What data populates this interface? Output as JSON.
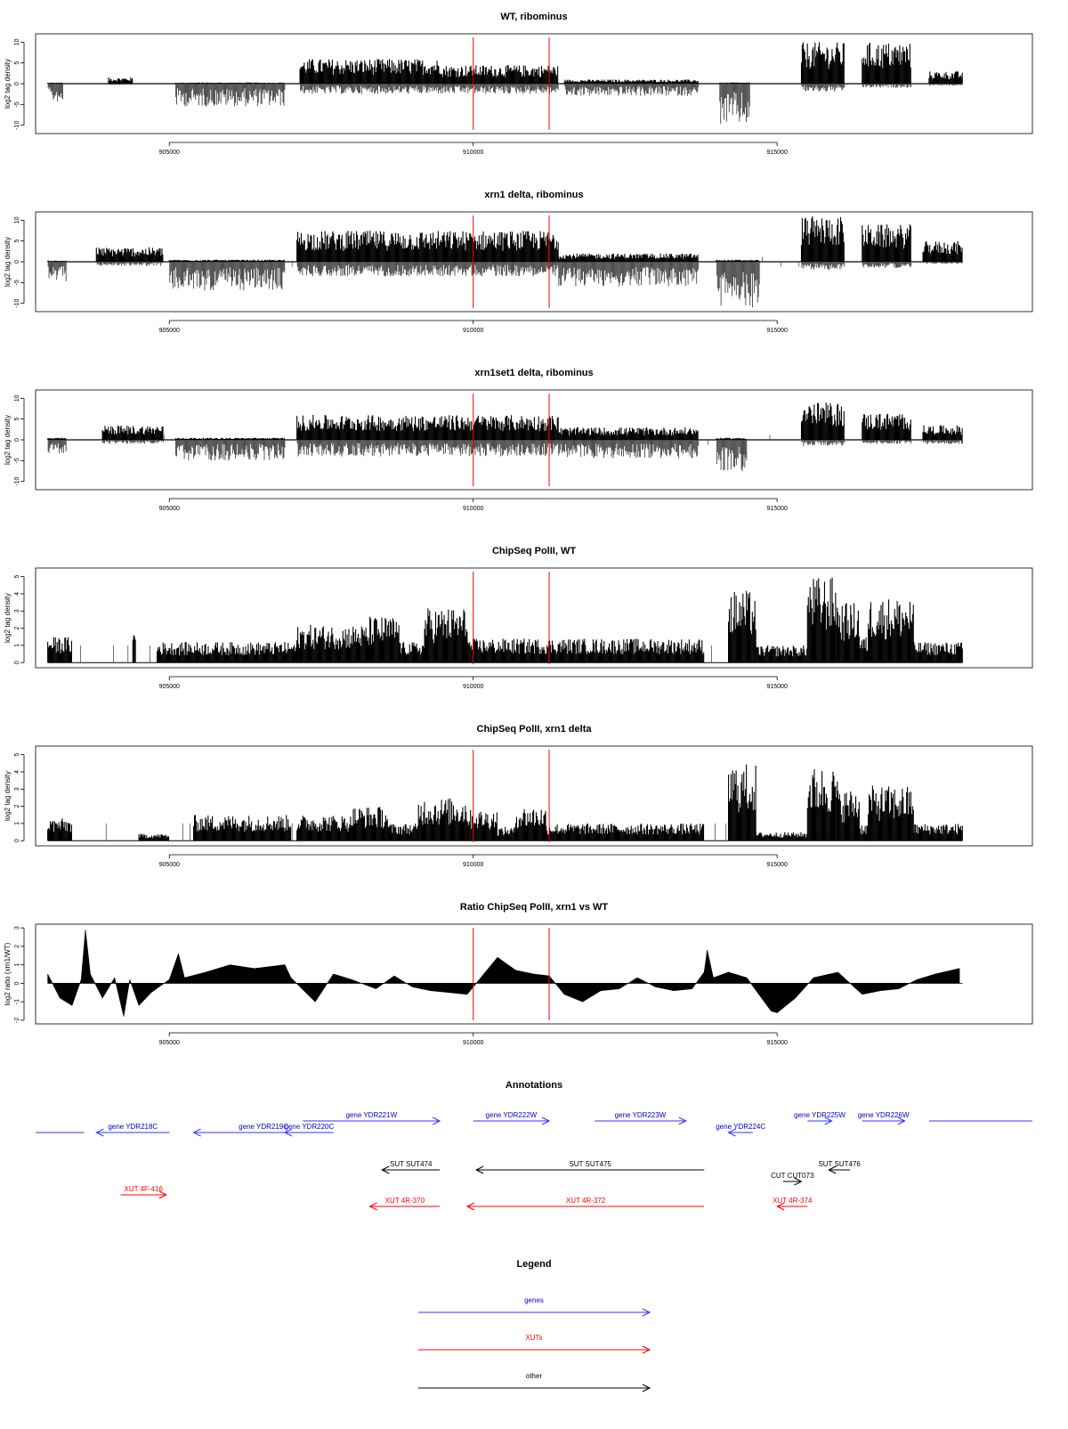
{
  "chart_data": [
    {
      "type": "bar",
      "title": "WT, ribominus",
      "ylabel": "log2 tag density",
      "xlim": [
        902800,
        919200
      ],
      "ylim": [
        -12,
        12
      ],
      "yticks": [
        -10,
        -5,
        0,
        5,
        10
      ],
      "xticks": [
        905000,
        910000,
        915000
      ],
      "xtick_labels": [
        "905000",
        "910000",
        "915000"
      ],
      "markers": [
        910000,
        911250
      ],
      "marker_color": "#ff0000",
      "signal_segments": [
        {
          "start": 903000,
          "end": 903250,
          "pos": 0.3,
          "neg": 4.5
        },
        {
          "start": 904000,
          "end": 904400,
          "pos": 1.5,
          "neg": 0.3
        },
        {
          "start": 905100,
          "end": 906900,
          "pos": 0.3,
          "neg": 5.5
        },
        {
          "start": 907150,
          "end": 909500,
          "pos": 6,
          "neg": 2.5
        },
        {
          "start": 909500,
          "end": 911400,
          "pos": 4.5,
          "neg": 2.5
        },
        {
          "start": 911500,
          "end": 913700,
          "pos": 1,
          "neg": 3
        },
        {
          "start": 914050,
          "end": 914550,
          "pos": 0.3,
          "neg": 10
        },
        {
          "start": 915400,
          "end": 916100,
          "pos": 10,
          "neg": 2
        },
        {
          "start": 916400,
          "end": 917200,
          "pos": 10,
          "neg": 1
        },
        {
          "start": 917500,
          "end": 918050,
          "pos": 3,
          "neg": 0.5
        }
      ]
    },
    {
      "type": "bar",
      "title": "xrn1 delta, ribominus",
      "ylabel": "log2 tag density",
      "xlim": [
        902800,
        919200
      ],
      "ylim": [
        -12,
        12
      ],
      "yticks": [
        -10,
        -5,
        0,
        5,
        10
      ],
      "xticks": [
        905000,
        910000,
        915000
      ],
      "xtick_labels": [
        "905000",
        "910000",
        "915000"
      ],
      "markers": [
        910000,
        911250
      ],
      "marker_color": "#ff0000",
      "signal_segments": [
        {
          "start": 903000,
          "end": 903300,
          "pos": 0.3,
          "neg": 5
        },
        {
          "start": 903800,
          "end": 904900,
          "pos": 3.5,
          "neg": 1
        },
        {
          "start": 905000,
          "end": 906900,
          "pos": 0.5,
          "neg": 7
        },
        {
          "start": 907100,
          "end": 911400,
          "pos": 7.5,
          "neg": 3.5
        },
        {
          "start": 911400,
          "end": 913700,
          "pos": 2,
          "neg": 6
        },
        {
          "start": 914000,
          "end": 914700,
          "pos": 0.5,
          "neg": 11
        },
        {
          "start": 915400,
          "end": 916100,
          "pos": 11,
          "neg": 2
        },
        {
          "start": 916400,
          "end": 917200,
          "pos": 9,
          "neg": 1.5
        },
        {
          "start": 917400,
          "end": 918050,
          "pos": 5,
          "neg": 0.5
        }
      ]
    },
    {
      "type": "bar",
      "title": "xrn1set1 delta, ribominus",
      "ylabel": "log2 tag density",
      "xlim": [
        902800,
        919200
      ],
      "ylim": [
        -12,
        12
      ],
      "yticks": [
        -10,
        -5,
        0,
        5,
        10
      ],
      "xticks": [
        905000,
        910000,
        915000
      ],
      "xtick_labels": [
        "905000",
        "910000",
        "915000"
      ],
      "markers": [
        910000,
        911250
      ],
      "marker_color": "#ff0000",
      "signal_segments": [
        {
          "start": 903000,
          "end": 903300,
          "pos": 0.5,
          "neg": 3.5
        },
        {
          "start": 903900,
          "end": 904900,
          "pos": 3.5,
          "neg": 1
        },
        {
          "start": 905100,
          "end": 906900,
          "pos": 0.5,
          "neg": 5
        },
        {
          "start": 907100,
          "end": 911400,
          "pos": 6,
          "neg": 4
        },
        {
          "start": 911400,
          "end": 913700,
          "pos": 3,
          "neg": 4.5
        },
        {
          "start": 914000,
          "end": 914500,
          "pos": 0.5,
          "neg": 8
        },
        {
          "start": 915400,
          "end": 916100,
          "pos": 9,
          "neg": 1.5
        },
        {
          "start": 916400,
          "end": 917200,
          "pos": 6.5,
          "neg": 1
        },
        {
          "start": 917400,
          "end": 918050,
          "pos": 3.5,
          "neg": 1
        }
      ]
    },
    {
      "type": "bar",
      "title": "ChipSeq PolII, WT",
      "ylabel": "log2 tag density",
      "xlim": [
        902800,
        919200
      ],
      "ylim": [
        -0.3,
        5.5
      ],
      "yticks": [
        0,
        1,
        2,
        3,
        4,
        5
      ],
      "xticks": [
        905000,
        910000,
        915000
      ],
      "xtick_labels": [
        "905000",
        "910000",
        "915000"
      ],
      "markers": [
        910000,
        911250
      ],
      "marker_color": "#ff0000",
      "signal_segments": [
        {
          "start": 903000,
          "end": 903400,
          "pos": 1.5,
          "neg": 0
        },
        {
          "start": 904400,
          "end": 904450,
          "pos": 2,
          "neg": 0
        },
        {
          "start": 904800,
          "end": 907100,
          "pos": 1.2,
          "neg": 0
        },
        {
          "start": 907100,
          "end": 908300,
          "pos": 2.2,
          "neg": 0
        },
        {
          "start": 908300,
          "end": 908800,
          "pos": 2.7,
          "neg": 0
        },
        {
          "start": 908800,
          "end": 909200,
          "pos": 1.2,
          "neg": 0
        },
        {
          "start": 909200,
          "end": 909900,
          "pos": 3.2,
          "neg": 0
        },
        {
          "start": 909900,
          "end": 913800,
          "pos": 1.4,
          "neg": 0
        },
        {
          "start": 914200,
          "end": 914650,
          "pos": 4.2,
          "neg": 0
        },
        {
          "start": 914650,
          "end": 915500,
          "pos": 1,
          "neg": 0
        },
        {
          "start": 915500,
          "end": 916000,
          "pos": 5,
          "neg": 0
        },
        {
          "start": 916000,
          "end": 916350,
          "pos": 3.5,
          "neg": 0
        },
        {
          "start": 916350,
          "end": 916500,
          "pos": 1.5,
          "neg": 0
        },
        {
          "start": 916500,
          "end": 917250,
          "pos": 3.8,
          "neg": 0
        },
        {
          "start": 917250,
          "end": 918050,
          "pos": 1.2,
          "neg": 0
        }
      ]
    },
    {
      "type": "bar",
      "title": "ChipSeq PolII, xrn1 delta",
      "ylabel": "log2 tag density",
      "xlim": [
        902800,
        919200
      ],
      "ylim": [
        -0.3,
        5.5
      ],
      "yticks": [
        0,
        1,
        2,
        3,
        4,
        5
      ],
      "xticks": [
        905000,
        910000,
        915000
      ],
      "xtick_labels": [
        "905000",
        "910000",
        "915000"
      ],
      "markers": [
        910000,
        911250
      ],
      "marker_color": "#ff0000",
      "signal_segments": [
        {
          "start": 903000,
          "end": 903400,
          "pos": 1.3,
          "neg": 0
        },
        {
          "start": 904500,
          "end": 905000,
          "pos": 0.4,
          "neg": 0
        },
        {
          "start": 905400,
          "end": 907000,
          "pos": 1.5,
          "neg": 0
        },
        {
          "start": 907100,
          "end": 908000,
          "pos": 1.5,
          "neg": 0
        },
        {
          "start": 908000,
          "end": 908600,
          "pos": 2,
          "neg": 0
        },
        {
          "start": 908600,
          "end": 909100,
          "pos": 1,
          "neg": 0
        },
        {
          "start": 909100,
          "end": 909900,
          "pos": 2.5,
          "neg": 0
        },
        {
          "start": 909900,
          "end": 910400,
          "pos": 1.8,
          "neg": 0
        },
        {
          "start": 910400,
          "end": 910700,
          "pos": 0.8,
          "neg": 0
        },
        {
          "start": 910700,
          "end": 911200,
          "pos": 2,
          "neg": 0
        },
        {
          "start": 911200,
          "end": 913800,
          "pos": 1,
          "neg": 0
        },
        {
          "start": 914200,
          "end": 914650,
          "pos": 4.5,
          "neg": 0
        },
        {
          "start": 914650,
          "end": 915500,
          "pos": 0.5,
          "neg": 0
        },
        {
          "start": 915500,
          "end": 916000,
          "pos": 4.3,
          "neg": 0
        },
        {
          "start": 916000,
          "end": 916350,
          "pos": 3,
          "neg": 0
        },
        {
          "start": 916350,
          "end": 916500,
          "pos": 1,
          "neg": 0
        },
        {
          "start": 916500,
          "end": 917250,
          "pos": 3.2,
          "neg": 0
        },
        {
          "start": 917250,
          "end": 918050,
          "pos": 1,
          "neg": 0
        }
      ]
    },
    {
      "type": "area",
      "title": "Ratio ChipSeq PolII, xrn1 vs WT",
      "ylabel": "log2 ratio (xrn1/WT)",
      "xlim": [
        902800,
        919200
      ],
      "ylim": [
        -2.2,
        3.2
      ],
      "yticks": [
        -2,
        -1,
        0,
        1,
        2,
        3
      ],
      "xticks": [
        905000,
        910000,
        915000
      ],
      "xtick_labels": [
        "905000",
        "910000",
        "915000"
      ],
      "markers": [
        910000,
        911250
      ],
      "marker_color": "#ff0000",
      "x": [
        903000,
        903200,
        903400,
        903550,
        903620,
        903700,
        903900,
        904100,
        904250,
        904350,
        904500,
        904700,
        905000,
        905150,
        905250,
        905600,
        906000,
        906400,
        906900,
        907000,
        907400,
        907700,
        908000,
        908400,
        908700,
        909000,
        909300,
        909600,
        909900,
        910100,
        910400,
        910700,
        911000,
        911250,
        911500,
        911800,
        912100,
        912400,
        912700,
        913000,
        913300,
        913600,
        913800,
        913850,
        913950,
        914200,
        914500,
        914700,
        914900,
        915000,
        915300,
        915600,
        916000,
        916400,
        916700,
        917000,
        917300,
        917600,
        918000
      ],
      "values": [
        0.5,
        -0.8,
        -1.2,
        0.2,
        2.9,
        0.5,
        -0.8,
        0.3,
        -1.8,
        0.2,
        -1.2,
        -0.5,
        0.2,
        1.6,
        0.3,
        0.6,
        1.0,
        0.8,
        1.0,
        0.3,
        -1.0,
        0.5,
        0.2,
        -0.3,
        0.4,
        -0.2,
        -0.4,
        -0.5,
        -0.6,
        0.2,
        1.4,
        0.7,
        0.5,
        0.4,
        -0.6,
        -1.0,
        -0.4,
        -0.3,
        0.3,
        -0.2,
        -0.4,
        -0.3,
        0.6,
        1.8,
        0.3,
        0.6,
        0.3,
        -0.6,
        -1.5,
        -1.6,
        -0.8,
        0.3,
        0.6,
        -0.6,
        -0.4,
        -0.3,
        0.2,
        0.5,
        0.8
      ]
    }
  ],
  "annotations": {
    "title": "Annotations",
    "tracks": [
      {
        "class": "gene",
        "label": "",
        "dir": "none",
        "start": 902800,
        "end": 903600,
        "row": 1
      },
      {
        "class": "gene",
        "label": "gene YDR218C",
        "dir": "left",
        "start": 903800,
        "end": 905000,
        "row": 1
      },
      {
        "class": "gene",
        "label": "gene YDR219C",
        "dir": "left",
        "start": 905400,
        "end": 907700,
        "row": 1
      },
      {
        "class": "gene",
        "label": "gene YDR220C",
        "dir": "left",
        "start": 906900,
        "end": 907700,
        "row": 1
      },
      {
        "class": "gene",
        "label": "gene YDR221W",
        "dir": "right",
        "start": 907200,
        "end": 909450,
        "row": 0
      },
      {
        "class": "gene",
        "label": "gene YDR222W",
        "dir": "right",
        "start": 910000,
        "end": 911250,
        "row": 0
      },
      {
        "class": "gene",
        "label": "gene YDR223W",
        "dir": "right",
        "start": 912000,
        "end": 913500,
        "row": 0
      },
      {
        "class": "gene",
        "label": "gene YDR224C",
        "dir": "left",
        "start": 914200,
        "end": 914600,
        "row": 1
      },
      {
        "class": "gene",
        "label": "gene YDR225W",
        "dir": "right",
        "start": 915500,
        "end": 915900,
        "row": 0
      },
      {
        "class": "gene",
        "label": "gene YDR226W",
        "dir": "right",
        "start": 916400,
        "end": 917100,
        "row": 0
      },
      {
        "class": "gene",
        "label": "",
        "dir": "none",
        "start": 917500,
        "end": 919200,
        "row": 0
      },
      {
        "class": "other",
        "label": "SUT SUT474",
        "dir": "left",
        "start": 908500,
        "end": 909450,
        "row": 2
      },
      {
        "class": "other",
        "label": "SUT SUT475",
        "dir": "left",
        "start": 910050,
        "end": 913800,
        "row": 2
      },
      {
        "class": "other",
        "label": "CUT CUT073",
        "dir": "right",
        "start": 915100,
        "end": 915400,
        "row": 3
      },
      {
        "class": "other",
        "label": "SUT SUT476",
        "dir": "left",
        "start": 915850,
        "end": 916200,
        "row": 2
      },
      {
        "class": "xut",
        "label": "XUT 4F-416",
        "dir": "right",
        "start": 904200,
        "end": 904950,
        "row": 4
      },
      {
        "class": "xut",
        "label": "XUT 4R-370",
        "dir": "left",
        "start": 908300,
        "end": 909450,
        "row": 5
      },
      {
        "class": "xut",
        "label": "XUT 4R-372",
        "dir": "left",
        "start": 909900,
        "end": 913800,
        "row": 5
      },
      {
        "class": "xut",
        "label": "XUT 4R-374",
        "dir": "left",
        "start": 915000,
        "end": 915500,
        "row": 5
      }
    ]
  },
  "legend": {
    "title": "Legend",
    "items": [
      {
        "label": "genes",
        "color": "#0000ff"
      },
      {
        "label": "XUTs",
        "color": "#ff0000"
      },
      {
        "label": "other",
        "color": "#000000"
      }
    ]
  }
}
